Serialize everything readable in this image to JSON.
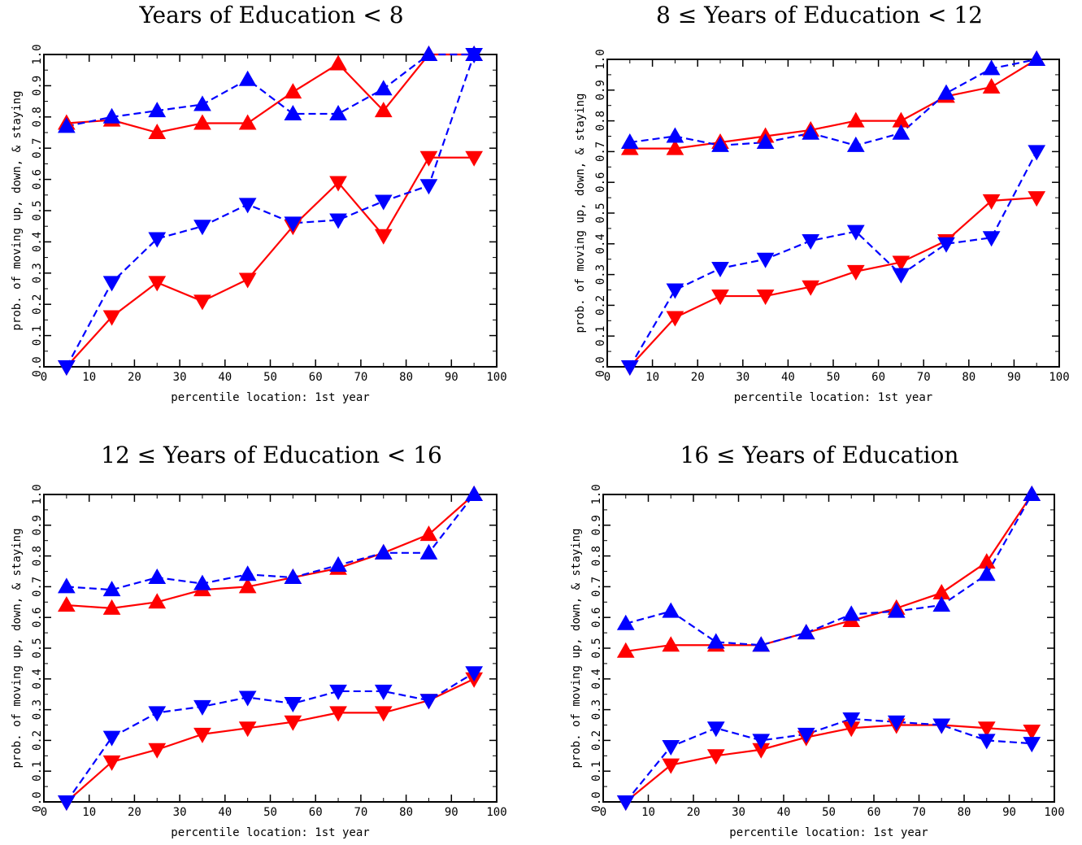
{
  "chart_data": [
    {
      "type": "line",
      "title": "Years of Education < 8",
      "xlabel": "percentile location: 1st year",
      "ylabel": "prob. of moving up, down, & staying",
      "xlim": [
        0,
        100
      ],
      "ylim": [
        0,
        1
      ],
      "xticks": [
        "0",
        "10",
        "20",
        "30",
        "40",
        "50",
        "60",
        "70",
        "80",
        "90",
        "100"
      ],
      "yticks": [
        "0.0",
        "0.1",
        "0.2",
        "0.3",
        "0.4",
        "0.5",
        "0.6",
        "0.7",
        "0.8",
        "0.9",
        "1.0"
      ],
      "x": [
        5,
        15,
        25,
        35,
        45,
        55,
        65,
        75,
        85,
        95
      ],
      "series": [
        {
          "marker": "triangle-up",
          "color": "#ff0000",
          "dash": "solid",
          "values": [
            0.78,
            0.79,
            0.75,
            0.78,
            0.78,
            0.88,
            0.97,
            0.82,
            1.0,
            1.0
          ]
        },
        {
          "marker": "triangle-up",
          "color": "#0000ff",
          "dash": "dashed",
          "values": [
            0.77,
            0.8,
            0.82,
            0.84,
            0.92,
            0.81,
            0.81,
            0.89,
            1.0,
            1.0
          ]
        },
        {
          "marker": "triangle-down",
          "color": "#ff0000",
          "dash": "solid",
          "values": [
            0.0,
            0.16,
            0.27,
            0.21,
            0.28,
            0.45,
            0.59,
            0.42,
            0.67,
            0.67
          ]
        },
        {
          "marker": "triangle-down",
          "color": "#0000ff",
          "dash": "dashed",
          "values": [
            0.0,
            0.27,
            0.41,
            0.45,
            0.52,
            0.46,
            0.47,
            0.53,
            0.58,
            1.0
          ]
        }
      ]
    },
    {
      "type": "line",
      "title": "8 ≤ Years of Education < 12",
      "xlabel": "percentile location: 1st year",
      "ylabel": "prob. of moving up, down, & staying",
      "xlim": [
        0,
        100
      ],
      "ylim": [
        0,
        1
      ],
      "xticks": [
        "0",
        "10",
        "20",
        "30",
        "40",
        "50",
        "60",
        "70",
        "80",
        "90",
        "100"
      ],
      "yticks": [
        "0.0",
        "0.1",
        "0.2",
        "0.3",
        "0.4",
        "0.5",
        "0.6",
        "0.7",
        "0.8",
        "0.9",
        "1.0"
      ],
      "x": [
        5,
        15,
        25,
        35,
        45,
        55,
        65,
        75,
        85,
        95
      ],
      "series": [
        {
          "marker": "triangle-up",
          "color": "#ff0000",
          "dash": "solid",
          "values": [
            0.71,
            0.71,
            0.73,
            0.75,
            0.77,
            0.8,
            0.8,
            0.88,
            0.91,
            1.0
          ]
        },
        {
          "marker": "triangle-up",
          "color": "#0000ff",
          "dash": "dashed",
          "values": [
            0.73,
            0.75,
            0.72,
            0.73,
            0.76,
            0.72,
            0.76,
            0.89,
            0.97,
            1.0
          ]
        },
        {
          "marker": "triangle-down",
          "color": "#ff0000",
          "dash": "solid",
          "values": [
            0.0,
            0.16,
            0.23,
            0.23,
            0.26,
            0.31,
            0.34,
            0.41,
            0.54,
            0.55
          ]
        },
        {
          "marker": "triangle-down",
          "color": "#0000ff",
          "dash": "dashed",
          "values": [
            0.0,
            0.25,
            0.32,
            0.35,
            0.41,
            0.44,
            0.3,
            0.4,
            0.42,
            0.7
          ]
        }
      ]
    },
    {
      "type": "line",
      "title": "12 ≤ Years of Education < 16",
      "xlabel": "percentile location: 1st year",
      "ylabel": "prob. of moving up, down, & staying",
      "xlim": [
        0,
        100
      ],
      "ylim": [
        0,
        1
      ],
      "xticks": [
        "0",
        "10",
        "20",
        "30",
        "40",
        "50",
        "60",
        "70",
        "80",
        "90",
        "100"
      ],
      "yticks": [
        "0.0",
        "0.1",
        "0.2",
        "0.3",
        "0.4",
        "0.5",
        "0.6",
        "0.7",
        "0.8",
        "0.9",
        "1.0"
      ],
      "x": [
        5,
        15,
        25,
        35,
        45,
        55,
        65,
        75,
        85,
        95
      ],
      "series": [
        {
          "marker": "triangle-up",
          "color": "#ff0000",
          "dash": "solid",
          "values": [
            0.64,
            0.63,
            0.65,
            0.69,
            0.7,
            0.73,
            0.76,
            0.81,
            0.87,
            1.0
          ]
        },
        {
          "marker": "triangle-up",
          "color": "#0000ff",
          "dash": "dashed",
          "values": [
            0.7,
            0.69,
            0.73,
            0.71,
            0.74,
            0.73,
            0.77,
            0.81,
            0.81,
            1.0
          ]
        },
        {
          "marker": "triangle-down",
          "color": "#ff0000",
          "dash": "solid",
          "values": [
            0.0,
            0.13,
            0.17,
            0.22,
            0.24,
            0.26,
            0.29,
            0.29,
            0.33,
            0.4
          ]
        },
        {
          "marker": "triangle-down",
          "color": "#0000ff",
          "dash": "dashed",
          "values": [
            0.0,
            0.21,
            0.29,
            0.31,
            0.34,
            0.32,
            0.36,
            0.36,
            0.33,
            0.42
          ]
        }
      ]
    },
    {
      "type": "line",
      "title": "16 ≤ Years of Education",
      "xlabel": "percentile location: 1st year",
      "ylabel": "prob. of moving up, down, & staying",
      "xlim": [
        0,
        100
      ],
      "ylim": [
        0,
        1
      ],
      "xticks": [
        "0",
        "10",
        "20",
        "30",
        "40",
        "50",
        "60",
        "70",
        "80",
        "90",
        "100"
      ],
      "yticks": [
        "0.0",
        "0.1",
        "0.2",
        "0.3",
        "0.4",
        "0.5",
        "0.6",
        "0.7",
        "0.8",
        "0.9",
        "1.0"
      ],
      "x": [
        5,
        15,
        25,
        35,
        45,
        55,
        65,
        75,
        85,
        95
      ],
      "series": [
        {
          "marker": "triangle-up",
          "color": "#ff0000",
          "dash": "solid",
          "values": [
            0.49,
            0.51,
            0.51,
            0.51,
            0.55,
            0.59,
            0.63,
            0.68,
            0.78,
            1.0
          ]
        },
        {
          "marker": "triangle-up",
          "color": "#0000ff",
          "dash": "dashed",
          "values": [
            0.58,
            0.62,
            0.52,
            0.51,
            0.55,
            0.61,
            0.62,
            0.64,
            0.74,
            1.0
          ]
        },
        {
          "marker": "triangle-down",
          "color": "#ff0000",
          "dash": "solid",
          "values": [
            0.0,
            0.12,
            0.15,
            0.17,
            0.21,
            0.24,
            0.25,
            0.25,
            0.24,
            0.23
          ]
        },
        {
          "marker": "triangle-down",
          "color": "#0000ff",
          "dash": "dashed",
          "values": [
            0.0,
            0.18,
            0.24,
            0.2,
            0.22,
            0.27,
            0.26,
            0.25,
            0.2,
            0.19
          ]
        }
      ]
    }
  ]
}
